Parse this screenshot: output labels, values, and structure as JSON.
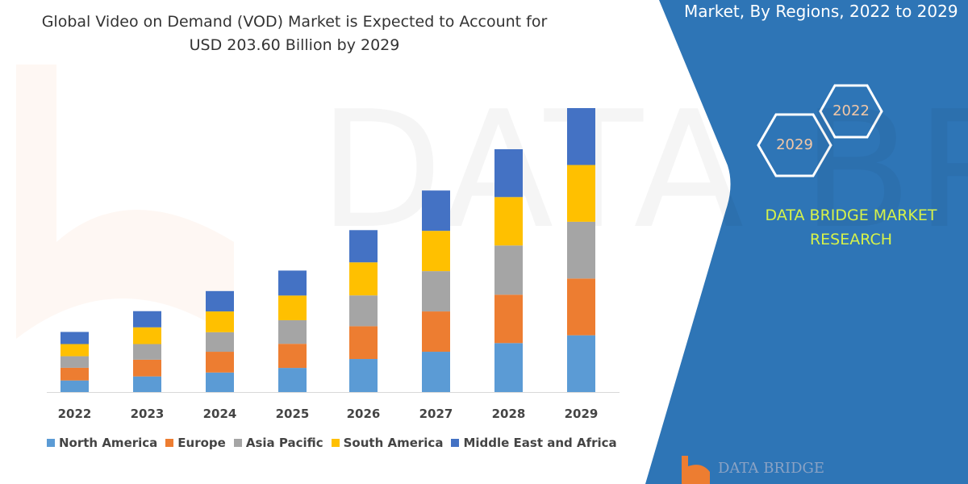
{
  "title_lines": [
    "Global Video on Demand (VOD) Market is Expected to Account for",
    "USD 203.60 Billion by 2029"
  ],
  "panel": {
    "heading": "Market, By Regions, 2022 to 2029",
    "hex_years": [
      "2022",
      "2029"
    ],
    "brand_lines": [
      "DATA BRIDGE MARKET",
      "RESEARCH"
    ],
    "logo_text": "DATA BRIDGE",
    "color": "#2E75B6",
    "brand_color": "#D6F24A"
  },
  "watermark_text": "DATA BRIDGE",
  "chart_data": {
    "type": "bar",
    "stacked": true,
    "title": "Global Video on Demand (VOD) Market is Expected to Account for USD 203.60 Billion by 2029",
    "xlabel": "",
    "ylabel": "",
    "categories": [
      "2022",
      "2023",
      "2024",
      "2025",
      "2026",
      "2027",
      "2028",
      "2029"
    ],
    "ylim": [
      0,
      210
    ],
    "grid": false,
    "legend_position": "bottom",
    "series": [
      {
        "name": "North America",
        "color": "#5B9BD5",
        "values": [
          8.3,
          11.2,
          14.0,
          17.3,
          23.7,
          28.9,
          35.1,
          40.7
        ]
      },
      {
        "name": "Europe",
        "color": "#ED7D31",
        "values": [
          9.1,
          12.0,
          14.9,
          17.3,
          23.5,
          28.9,
          34.7,
          40.7
        ]
      },
      {
        "name": "Asia Pacific",
        "color": "#A5A5A5",
        "values": [
          8.3,
          11.2,
          14.0,
          16.9,
          22.1,
          28.9,
          35.3,
          40.7
        ]
      },
      {
        "name": "South America",
        "color": "#FFC000",
        "values": [
          8.7,
          12.0,
          14.9,
          17.7,
          23.7,
          28.9,
          34.7,
          40.7
        ]
      },
      {
        "name": "Middle East and Africa",
        "color": "#4472C4",
        "values": [
          8.7,
          11.6,
          14.6,
          17.9,
          23.1,
          28.9,
          34.3,
          40.8
        ]
      }
    ]
  }
}
